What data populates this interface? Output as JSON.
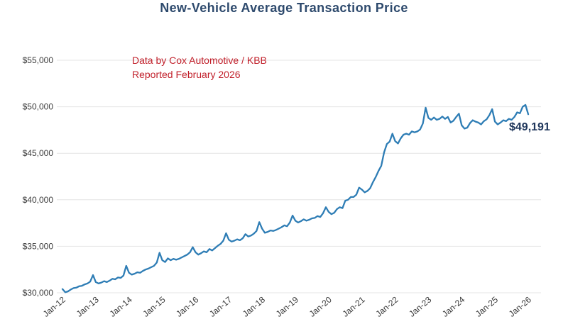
{
  "header": {
    "title": "New-Vehicle Average Transaction Price",
    "title_color": "#2e4a6d"
  },
  "annotation": {
    "line1": "Data by Cox Automotive / KBB",
    "line2": "Reported February 2026",
    "color": "#c11f2a"
  },
  "chart_data": {
    "type": "line",
    "title": "New-Vehicle Average Transaction Price",
    "x_unit": "month",
    "x_start": "Jan-2012",
    "x_end": "Jan-2026",
    "x_tick_labels": [
      "Jan-12",
      "Jan-13",
      "Jan-14",
      "Jan-15",
      "Jan-16",
      "Jan-17",
      "Jan-18",
      "Jan-19",
      "Jan-20",
      "Jan-21",
      "Jan-22",
      "Jan-23",
      "Jan-24",
      "Jan-25",
      "Jan-26"
    ],
    "y_ticks": [
      30000,
      35000,
      40000,
      45000,
      50000,
      55000
    ],
    "y_tick_labels": [
      "$30,000",
      "$35,000",
      "$40,000",
      "$45,000",
      "$50,000",
      "$55,000"
    ],
    "ylim": [
      30000,
      55000
    ],
    "grid": "horizontal",
    "grid_color": "#e4e4e4",
    "line_color": "#2e7db5",
    "label_color": "#20375c",
    "end_label": "$49,191",
    "end_value": 49191,
    "values": [
      30400,
      30050,
      30150,
      30350,
      30500,
      30550,
      30700,
      30750,
      30900,
      31000,
      31200,
      31900,
      31150,
      31000,
      31100,
      31250,
      31150,
      31300,
      31500,
      31450,
      31650,
      31600,
      31850,
      32900,
      32150,
      31950,
      32050,
      32200,
      32150,
      32350,
      32500,
      32600,
      32750,
      32900,
      33250,
      34300,
      33500,
      33300,
      33700,
      33500,
      33650,
      33550,
      33650,
      33800,
      33950,
      34100,
      34350,
      34900,
      34350,
      34100,
      34250,
      34450,
      34350,
      34700,
      34550,
      34800,
      35050,
      35250,
      35600,
      36400,
      35700,
      35500,
      35600,
      35750,
      35650,
      35850,
      36300,
      36050,
      36150,
      36350,
      36650,
      37600,
      36900,
      36450,
      36550,
      36700,
      36650,
      36750,
      36900,
      37050,
      37250,
      37150,
      37550,
      38300,
      37750,
      37550,
      37700,
      37900,
      37750,
      37850,
      38000,
      38050,
      38250,
      38150,
      38550,
      39200,
      38700,
      38450,
      38600,
      39000,
      39200,
      39100,
      39900,
      40000,
      40300,
      40300,
      40550,
      41300,
      41100,
      40800,
      40950,
      41250,
      41900,
      42450,
      43100,
      43650,
      45100,
      46000,
      46250,
      47100,
      46300,
      46050,
      46600,
      47000,
      47100,
      47000,
      47350,
      47250,
      47350,
      47550,
      48200,
      49900,
      48800,
      48600,
      48850,
      48600,
      48700,
      48950,
      48700,
      48900,
      48300,
      48500,
      48900,
      49250,
      48000,
      47650,
      47750,
      48250,
      48550,
      48400,
      48300,
      48100,
      48450,
      48650,
      49100,
      49740,
      48400,
      48100,
      48300,
      48550,
      48450,
      48700,
      48600,
      48900,
      49400,
      49300,
      50000,
      50200,
      49191
    ]
  }
}
